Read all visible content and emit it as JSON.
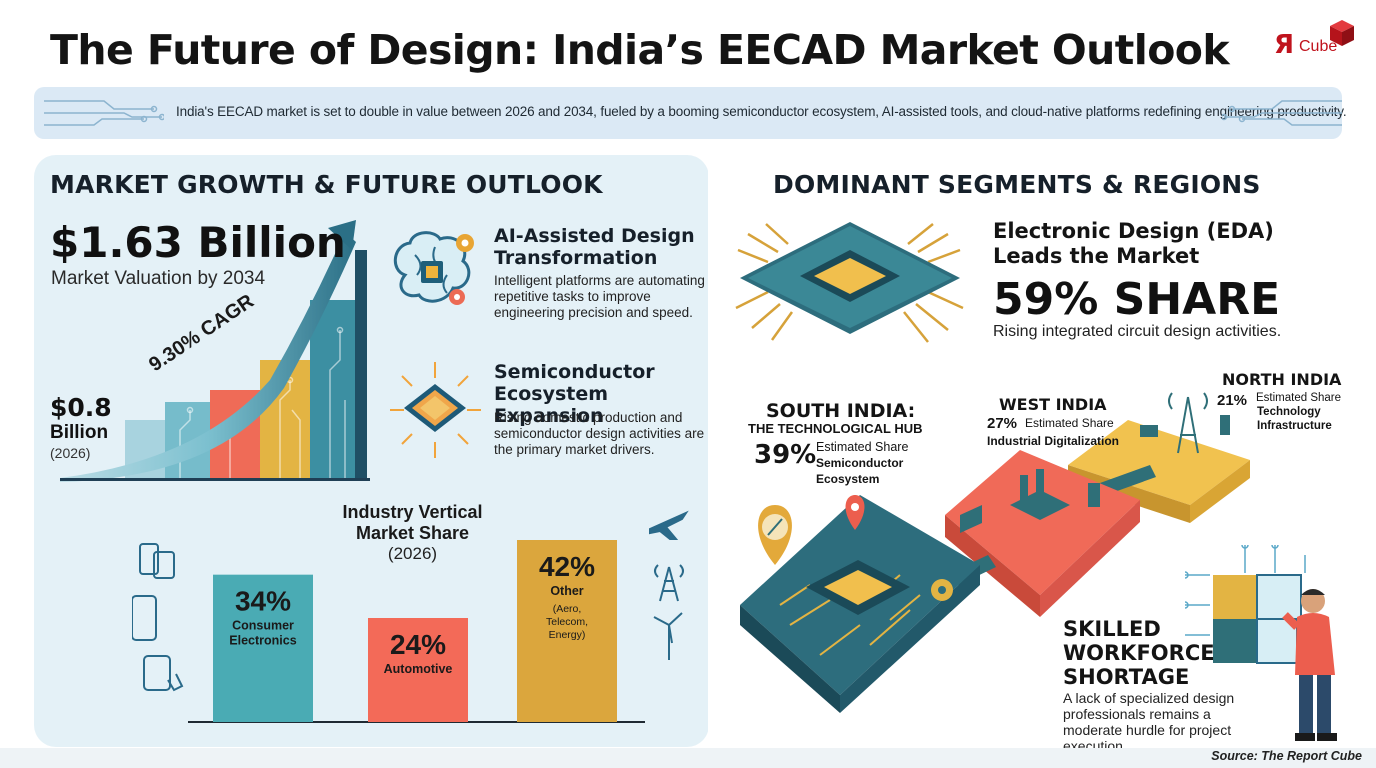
{
  "title": "The Future of Design: India’s EECAD Market Outlook",
  "logo": {
    "r": "Я",
    "text": "Cube",
    "color": "#c0131d"
  },
  "banner": {
    "text": "India's EECAD market is set to double in value between 2026 and 2034, fueled by a booming semiconductor ecosystem, AI-assisted tools, and cloud-native platforms redefining engineering productivity."
  },
  "left": {
    "heading": "MARKET GROWTH & FUTURE OUTLOOK",
    "end_value": "$1.63 Billion",
    "end_label": "Market Valuation by 2034",
    "start_value": "$0.8",
    "start_unit": "Billion",
    "start_year": "(2026)",
    "cagr": "9.30% CAGR",
    "features": [
      {
        "title": "AI-Assisted Design Transformation",
        "body": "Intelligent platforms are automating repetitive tasks to improve engineering precision and speed.",
        "icon": "brain-chip-icon"
      },
      {
        "title": "Semiconductor Ecosystem Expansion",
        "body": "Rising domestic production and semiconductor design activities are the primary market drivers.",
        "icon": "glowing-chip-icon"
      }
    ],
    "industry_title": "Industry Vertical Market Share",
    "industry_year": "(2026)"
  },
  "chart_data": {
    "type": "bar",
    "title": "Industry Vertical Market Share",
    "subtitle": "(2026)",
    "categories": [
      "Consumer Electronics",
      "Automotive",
      "Other"
    ],
    "values": [
      34,
      24,
      42
    ],
    "value_labels": [
      "34%",
      "24%",
      "42%"
    ],
    "category_notes": [
      "",
      "",
      "(Aero, Telecom, Energy)"
    ],
    "colors": [
      "#4aabb4",
      "#f36a58",
      "#dba63d"
    ],
    "ylim": [
      0,
      42
    ]
  },
  "right": {
    "heading": "DOMINANT SEGMENTS & REGIONS",
    "eda_title_1": "Electronic Design (EDA)",
    "eda_title_2": "Leads the Market",
    "eda_share": "59% SHARE",
    "eda_desc": "Rising integrated circuit design activities.",
    "regions": {
      "south": {
        "name": "SOUTH INDIA:",
        "sub": "THE TECHNOLOGICAL HUB",
        "pct": "39%",
        "est": "Estimated Share",
        "label1": "Semiconductor",
        "label2": "Ecosystem",
        "color": "#2f6f78"
      },
      "west": {
        "name": "WEST INDIA",
        "pct": "27%",
        "est": "Estimated Share",
        "label": "Industrial Digitalization",
        "color": "#ec5e4e"
      },
      "north": {
        "name": "NORTH INDIA",
        "pct": "21%",
        "est": "Estimated Share",
        "label1": "Technology",
        "label2": "Infrastructure",
        "color": "#e6b43a"
      }
    },
    "skill_title": [
      "SKILLED",
      "WORKFORCE",
      "SHORTAGE"
    ],
    "skill_body": "A lack of specialized design professionals remains a moderate hurdle for project execution."
  },
  "source": "Source: The Report Cube"
}
